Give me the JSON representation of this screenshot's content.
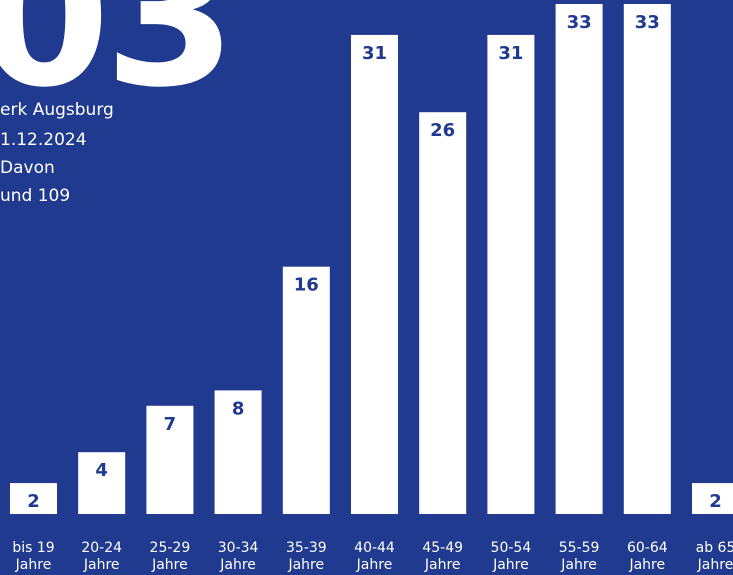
{
  "headline": {
    "big_number_fragment": "03",
    "lines": [
      "erk Augsburg",
      "1.12.2024",
      "Davon",
      " und 109"
    ]
  },
  "colors": {
    "background": "#1f3a8f",
    "bar": "#ffffff",
    "bar_label": "#1f3a8f",
    "text": "#ffffff"
  },
  "chart_data": {
    "type": "bar",
    "categories": [
      [
        "bis 19",
        "Jahre"
      ],
      [
        "20-24",
        "Jahre"
      ],
      [
        "25-29",
        "Jahre"
      ],
      [
        "30-34",
        "Jahre"
      ],
      [
        "35-39",
        "Jahre"
      ],
      [
        "40-44",
        "Jahre"
      ],
      [
        "45-49",
        "Jahre"
      ],
      [
        "50-54",
        "Jahre"
      ],
      [
        "55-59",
        "Jahre"
      ],
      [
        "60-64",
        "Jahre"
      ],
      [
        "ab 65",
        "Jahre"
      ]
    ],
    "values": [
      2,
      4,
      7,
      8,
      16,
      31,
      26,
      31,
      33,
      33,
      2
    ],
    "title": "",
    "xlabel": "",
    "ylabel": "",
    "ylim": [
      0,
      33
    ],
    "grid": false,
    "legend": "none"
  }
}
